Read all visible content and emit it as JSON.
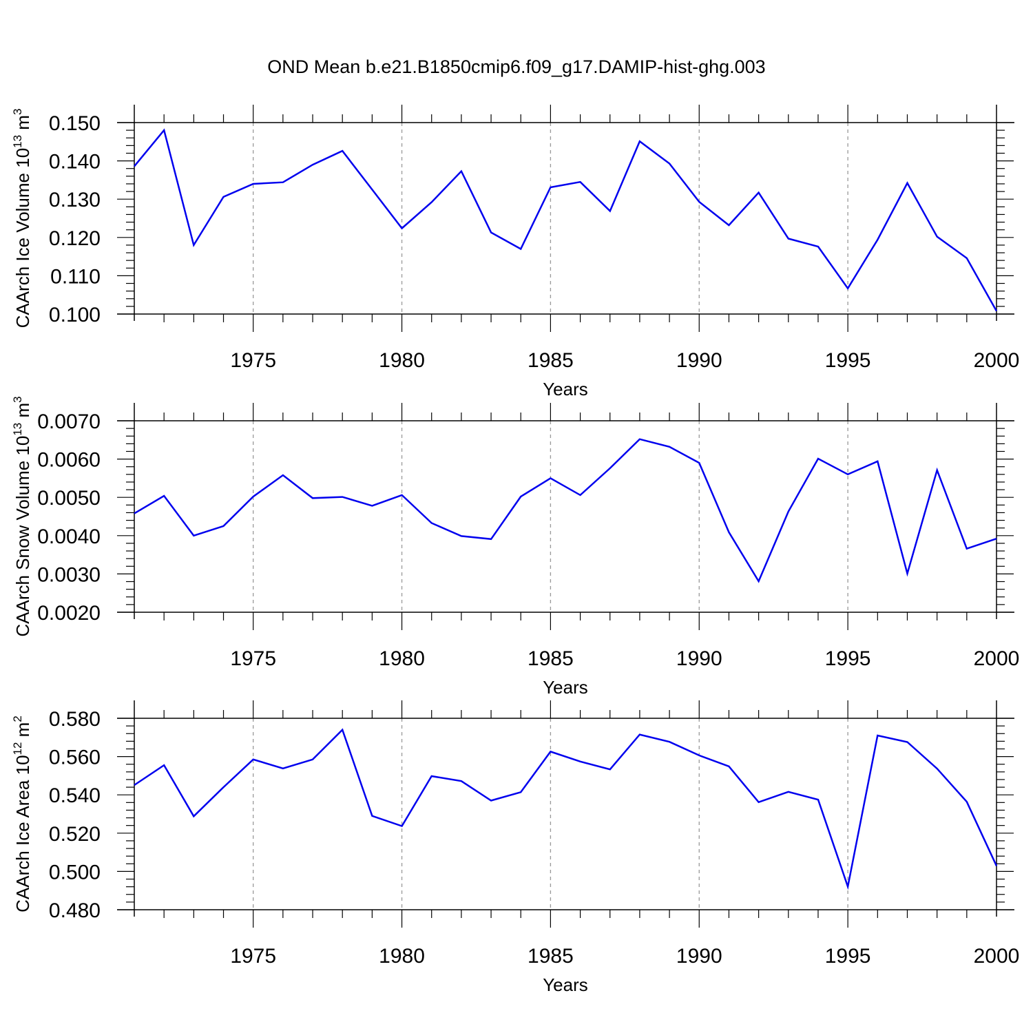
{
  "figure": {
    "title": "OND Mean b.e21.B1850cmip6.f09_g17.DAMIP-hist-ghg.003"
  },
  "chart_data": [
    {
      "type": "line",
      "ylabel": "CAArch Ice Volume 10",
      "ylabel_exp": "13",
      "ylabel_unit": " m",
      "ylabel_unit_exp": "3",
      "xlabel": "Years",
      "xlim": [
        1971,
        2000
      ],
      "ylim": [
        0.1,
        0.15
      ],
      "yticks": [
        0.1,
        0.11,
        0.12,
        0.13,
        0.14,
        0.15
      ],
      "ytick_labels": [
        "0.100",
        "0.110",
        "0.120",
        "0.130",
        "0.140",
        "0.150"
      ],
      "xticks": [
        1975,
        1980,
        1985,
        1990,
        1995,
        2000
      ],
      "xtick_labels": [
        "1975",
        "1980",
        "1985",
        "1990",
        "1995",
        "2000"
      ],
      "grid": "vertical dashed at major x ticks",
      "series_color": "#0000ee",
      "x": [
        1971,
        1972,
        1973,
        1974,
        1975,
        1976,
        1977,
        1978,
        1979,
        1980,
        1981,
        1982,
        1983,
        1984,
        1985,
        1986,
        1987,
        1988,
        1989,
        1990,
        1991,
        1992,
        1993,
        1994,
        1995,
        1996,
        1997,
        1998,
        1999,
        2000
      ],
      "values": [
        0.1386,
        0.148,
        0.118,
        0.1306,
        0.134,
        0.1344,
        0.139,
        0.1426,
        0.1325,
        0.1224,
        0.1292,
        0.1373,
        0.1213,
        0.117,
        0.1331,
        0.1345,
        0.1269,
        0.1451,
        0.1393,
        0.1293,
        0.1232,
        0.1317,
        0.1197,
        0.1176,
        0.1067,
        0.1194,
        0.1342,
        0.1202,
        0.1146,
        0.1008
      ]
    },
    {
      "type": "line",
      "ylabel": "CAArch Snow Volume 10",
      "ylabel_exp": "13",
      "ylabel_unit": " m",
      "ylabel_unit_exp": "3",
      "xlabel": "Years",
      "xlim": [
        1971,
        2000
      ],
      "ylim": [
        0.002,
        0.007
      ],
      "yticks": [
        0.002,
        0.003,
        0.004,
        0.005,
        0.006,
        0.007
      ],
      "ytick_labels": [
        "0.0020",
        "0.0030",
        "0.0040",
        "0.0050",
        "0.0060",
        "0.0070"
      ],
      "xticks": [
        1975,
        1980,
        1985,
        1990,
        1995,
        2000
      ],
      "xtick_labels": [
        "1975",
        "1980",
        "1985",
        "1990",
        "1995",
        "2000"
      ],
      "grid": "vertical dashed at major x ticks",
      "series_color": "#0000ee",
      "x": [
        1971,
        1972,
        1973,
        1974,
        1975,
        1976,
        1977,
        1978,
        1979,
        1980,
        1981,
        1982,
        1983,
        1984,
        1985,
        1986,
        1987,
        1988,
        1989,
        1990,
        1991,
        1992,
        1993,
        1994,
        1995,
        1996,
        1997,
        1998,
        1999,
        2000
      ],
      "values": [
        0.00458,
        0.00504,
        0.004,
        0.00425,
        0.00502,
        0.00558,
        0.00498,
        0.00501,
        0.00478,
        0.00506,
        0.00433,
        0.00399,
        0.00391,
        0.00502,
        0.0055,
        0.00506,
        0.00576,
        0.00652,
        0.00632,
        0.0059,
        0.00409,
        0.00281,
        0.00463,
        0.00601,
        0.0056,
        0.00594,
        0.00301,
        0.00571,
        0.00366,
        0.00392
      ]
    },
    {
      "type": "line",
      "ylabel": "CAArch Ice Area 10",
      "ylabel_exp": "12",
      "ylabel_unit": " m",
      "ylabel_unit_exp": "2",
      "xlabel": "Years",
      "xlim": [
        1971,
        2000
      ],
      "ylim": [
        0.48,
        0.58
      ],
      "yticks": [
        0.48,
        0.5,
        0.52,
        0.54,
        0.56,
        0.58
      ],
      "ytick_labels": [
        "0.480",
        "0.500",
        "0.520",
        "0.540",
        "0.560",
        "0.580"
      ],
      "xticks": [
        1975,
        1980,
        1985,
        1990,
        1995,
        2000
      ],
      "xtick_labels": [
        "1975",
        "1980",
        "1985",
        "1990",
        "1995",
        "2000"
      ],
      "grid": "vertical dashed at major x ticks",
      "series_color": "#0000ee",
      "x": [
        1971,
        1972,
        1973,
        1974,
        1975,
        1976,
        1977,
        1978,
        1979,
        1980,
        1981,
        1982,
        1983,
        1984,
        1985,
        1986,
        1987,
        1988,
        1989,
        1990,
        1991,
        1992,
        1993,
        1994,
        1995,
        1996,
        1997,
        1998,
        1999,
        2000
      ],
      "values": [
        0.5451,
        0.5555,
        0.5288,
        0.544,
        0.5585,
        0.5538,
        0.5585,
        0.574,
        0.529,
        0.5237,
        0.5498,
        0.5472,
        0.537,
        0.5414,
        0.5626,
        0.5574,
        0.5533,
        0.5715,
        0.5677,
        0.5606,
        0.5549,
        0.5362,
        0.5416,
        0.5375,
        0.4921,
        0.571,
        0.5676,
        0.5537,
        0.5364,
        0.5029
      ]
    }
  ]
}
